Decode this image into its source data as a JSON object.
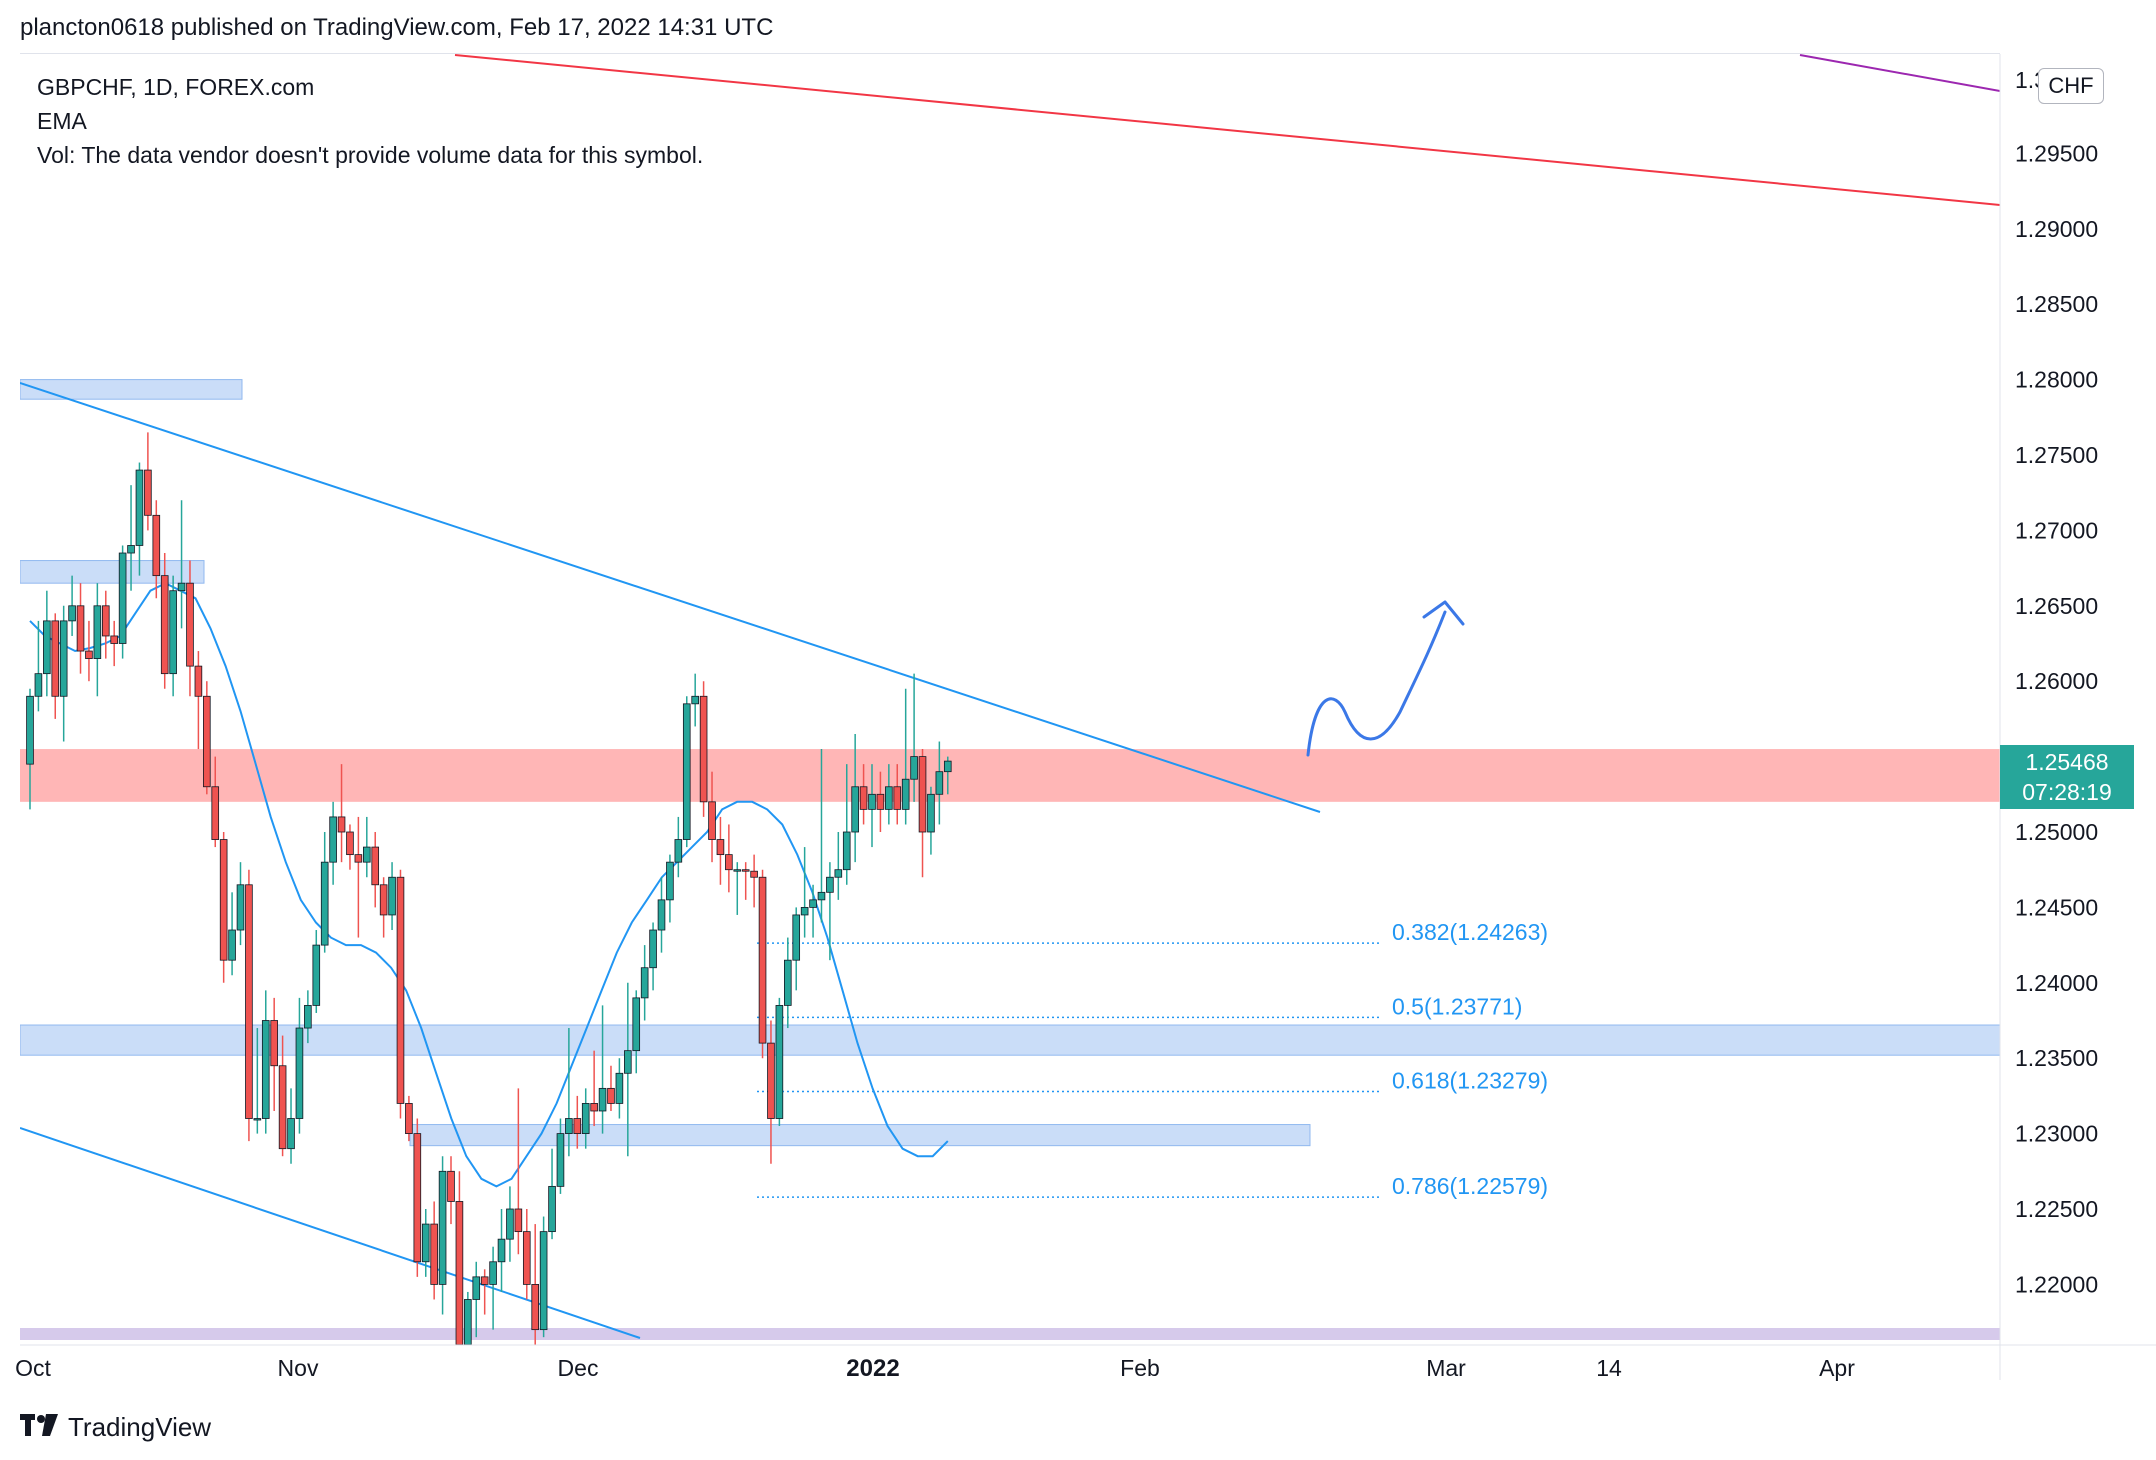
{
  "header": {
    "publish_line": "plancton0618 published on TradingView.com, Feb 17, 2022 14:31 UTC"
  },
  "legend": {
    "symbol_line": "GBPCHF, 1D, FOREX.com",
    "indicator": "EMA",
    "volume_note": "Vol: The data vendor doesn't provide volume data for this symbol."
  },
  "price_axis": {
    "currency": "CHF",
    "tick_labels": [
      "1.29500",
      "1.29000",
      "1.28500",
      "1.28000",
      "1.27500",
      "1.27000",
      "1.26500",
      "1.26000",
      "1.25000",
      "1.24500",
      "1.24000",
      "1.23500",
      "1.23000",
      "1.22500",
      "1.22000"
    ],
    "tick_values": [
      1.295,
      1.29,
      1.285,
      1.28,
      1.275,
      1.27,
      1.265,
      1.26,
      1.25,
      1.245,
      1.24,
      1.235,
      1.23,
      1.225,
      1.22
    ]
  },
  "last_price": {
    "price": "1.25468",
    "countdown": "07:28:19"
  },
  "time_axis": {
    "labels": [
      "Oct",
      "Nov",
      "Dec",
      "2022",
      "Feb",
      "Mar",
      "14",
      "Apr"
    ],
    "bold_label": "2022"
  },
  "fib_levels": [
    {
      "label": "0.382(1.24263)",
      "value": 1.24263
    },
    {
      "label": "0.5(1.23771)",
      "value": 1.23771
    },
    {
      "label": "0.618(1.23279)",
      "value": 1.23279
    },
    {
      "label": "0.786(1.22579)",
      "value": 1.22579
    }
  ],
  "colors": {
    "up": "#26a69a",
    "down": "#ef5350",
    "ema": "#2196f3",
    "trendline": "#2196f3",
    "red_line": "#f23645",
    "purple_line": "#9c27b0",
    "resistance_zone": "#ff9e9e",
    "support_zone": "#b3cff5",
    "projection": "#3b78e7"
  },
  "footer": {
    "brand": "TradingView",
    "logo_icon": "tradingview-logo-icon"
  },
  "chart_data": {
    "type": "candlestick",
    "symbol": "GBPCHF",
    "interval": "1D",
    "ylim": [
      1.216,
      1.3
    ],
    "candles": [
      [
        1.2545,
        1.2595,
        1.2515,
        1.259
      ],
      [
        1.259,
        1.264,
        1.258,
        1.2605
      ],
      [
        1.2605,
        1.266,
        1.259,
        1.264
      ],
      [
        1.264,
        1.2645,
        1.2575,
        1.259
      ],
      [
        1.259,
        1.265,
        1.256,
        1.264
      ],
      [
        1.264,
        1.267,
        1.263,
        1.265
      ],
      [
        1.265,
        1.2665,
        1.2605,
        1.262
      ],
      [
        1.262,
        1.264,
        1.26,
        1.2615
      ],
      [
        1.2615,
        1.2665,
        1.259,
        1.265
      ],
      [
        1.265,
        1.266,
        1.2615,
        1.263
      ],
      [
        1.263,
        1.264,
        1.261,
        1.2625
      ],
      [
        1.2625,
        1.269,
        1.2615,
        1.2685
      ],
      [
        1.2685,
        1.273,
        1.266,
        1.269
      ],
      [
        1.269,
        1.2745,
        1.267,
        1.274
      ],
      [
        1.274,
        1.2765,
        1.27,
        1.271
      ],
      [
        1.271,
        1.272,
        1.2655,
        1.267
      ],
      [
        1.267,
        1.2685,
        1.2595,
        1.2605
      ],
      [
        1.2605,
        1.267,
        1.259,
        1.266
      ],
      [
        1.266,
        1.272,
        1.2635,
        1.2665
      ],
      [
        1.2665,
        1.268,
        1.259,
        1.261
      ],
      [
        1.261,
        1.262,
        1.2555,
        1.259
      ],
      [
        1.259,
        1.26,
        1.2525,
        1.253
      ],
      [
        1.253,
        1.255,
        1.249,
        1.2495
      ],
      [
        1.2495,
        1.25,
        1.24,
        1.2415
      ],
      [
        1.2415,
        1.246,
        1.2405,
        1.2435
      ],
      [
        1.2435,
        1.248,
        1.2425,
        1.2465
      ],
      [
        1.2465,
        1.2475,
        1.2295,
        1.231
      ],
      [
        1.231,
        1.237,
        1.23,
        1.231
      ],
      [
        1.231,
        1.2395,
        1.23,
        1.2375
      ],
      [
        1.2375,
        1.239,
        1.2315,
        1.2345
      ],
      [
        1.2345,
        1.2365,
        1.2285,
        1.229
      ],
      [
        1.229,
        1.233,
        1.228,
        1.231
      ],
      [
        1.231,
        1.239,
        1.23,
        1.237
      ],
      [
        1.237,
        1.2395,
        1.236,
        1.2385
      ],
      [
        1.2385,
        1.2435,
        1.238,
        1.2425
      ],
      [
        1.2425,
        1.25,
        1.242,
        1.248
      ],
      [
        1.248,
        1.252,
        1.2465,
        1.251
      ],
      [
        1.251,
        1.2545,
        1.248,
        1.25
      ],
      [
        1.25,
        1.2505,
        1.2475,
        1.2485
      ],
      [
        1.2485,
        1.251,
        1.243,
        1.248
      ],
      [
        1.248,
        1.251,
        1.247,
        1.249
      ],
      [
        1.249,
        1.25,
        1.245,
        1.2465
      ],
      [
        1.2465,
        1.247,
        1.243,
        1.2445
      ],
      [
        1.2445,
        1.248,
        1.2435,
        1.247
      ],
      [
        1.247,
        1.2475,
        1.231,
        1.232
      ],
      [
        1.232,
        1.2325,
        1.2295,
        1.23
      ],
      [
        1.23,
        1.231,
        1.2205,
        1.2215
      ],
      [
        1.2215,
        1.225,
        1.2205,
        1.224
      ],
      [
        1.224,
        1.2255,
        1.219,
        1.22
      ],
      [
        1.22,
        1.2285,
        1.218,
        1.2275
      ],
      [
        1.2275,
        1.2285,
        1.224,
        1.2255
      ],
      [
        1.2255,
        1.2275,
        1.215,
        1.216
      ],
      [
        1.216,
        1.2195,
        1.215,
        1.219
      ],
      [
        1.219,
        1.2215,
        1.2165,
        1.2205
      ],
      [
        1.2205,
        1.221,
        1.218,
        1.22
      ],
      [
        1.22,
        1.2225,
        1.217,
        1.2215
      ],
      [
        1.2215,
        1.225,
        1.2195,
        1.223
      ],
      [
        1.223,
        1.2265,
        1.2215,
        1.225
      ],
      [
        1.225,
        1.233,
        1.222,
        1.2235
      ],
      [
        1.2235,
        1.225,
        1.219,
        1.22
      ],
      [
        1.22,
        1.224,
        1.216,
        1.217
      ],
      [
        1.217,
        1.2245,
        1.2165,
        1.2235
      ],
      [
        1.2235,
        1.229,
        1.223,
        1.2265
      ],
      [
        1.2265,
        1.231,
        1.226,
        1.23
      ],
      [
        1.23,
        1.237,
        1.2285,
        1.231
      ],
      [
        1.231,
        1.2325,
        1.229,
        1.23
      ],
      [
        1.23,
        1.233,
        1.229,
        1.232
      ],
      [
        1.232,
        1.2355,
        1.2305,
        1.2315
      ],
      [
        1.2315,
        1.2385,
        1.23,
        1.233
      ],
      [
        1.233,
        1.2345,
        1.2315,
        1.232
      ],
      [
        1.232,
        1.235,
        1.231,
        1.234
      ],
      [
        1.234,
        1.24,
        1.2285,
        1.2355
      ],
      [
        1.2355,
        1.2395,
        1.234,
        1.239
      ],
      [
        1.239,
        1.2425,
        1.2375,
        1.241
      ],
      [
        1.241,
        1.244,
        1.2395,
        1.2435
      ],
      [
        1.2435,
        1.247,
        1.242,
        1.2455
      ],
      [
        1.2455,
        1.2485,
        1.244,
        1.248
      ],
      [
        1.248,
        1.251,
        1.247,
        1.2495
      ],
      [
        1.2495,
        1.259,
        1.249,
        1.2585
      ],
      [
        1.2585,
        1.2605,
        1.257,
        1.259
      ],
      [
        1.259,
        1.26,
        1.251,
        1.252
      ],
      [
        1.252,
        1.254,
        1.248,
        1.2495
      ],
      [
        1.2495,
        1.251,
        1.2465,
        1.2485
      ],
      [
        1.2485,
        1.2505,
        1.246,
        1.2475
      ],
      [
        1.2475,
        1.248,
        1.2445,
        1.2475
      ],
      [
        1.2475,
        1.248,
        1.2455,
        1.2474
      ],
      [
        1.2474,
        1.2485,
        1.245,
        1.247
      ],
      [
        1.247,
        1.2475,
        1.235,
        1.236
      ],
      [
        1.236,
        1.2375,
        1.228,
        1.231
      ],
      [
        1.231,
        1.239,
        1.2305,
        1.2385
      ],
      [
        1.2385,
        1.243,
        1.237,
        1.2415
      ],
      [
        1.2415,
        1.245,
        1.2395,
        1.2445
      ],
      [
        1.2445,
        1.249,
        1.243,
        1.245
      ],
      [
        1.245,
        1.2465,
        1.243,
        1.2455
      ],
      [
        1.2455,
        1.2555,
        1.244,
        1.246
      ],
      [
        1.246,
        1.248,
        1.2415,
        1.247
      ],
      [
        1.247,
        1.25,
        1.2455,
        1.2475
      ],
      [
        1.2475,
        1.2545,
        1.2465,
        1.25
      ],
      [
        1.25,
        1.2565,
        1.248,
        1.253
      ],
      [
        1.253,
        1.2545,
        1.2505,
        1.2515
      ],
      [
        1.2515,
        1.2545,
        1.249,
        1.2525
      ],
      [
        1.2525,
        1.254,
        1.25,
        1.2515
      ],
      [
        1.2515,
        1.2545,
        1.2505,
        1.253
      ],
      [
        1.253,
        1.2545,
        1.2505,
        1.2515
      ],
      [
        1.2515,
        1.2595,
        1.2505,
        1.2535
      ],
      [
        1.2535,
        1.2605,
        1.252,
        1.255
      ],
      [
        1.255,
        1.2555,
        1.247,
        1.25
      ],
      [
        1.25,
        1.253,
        1.2485,
        1.2525
      ],
      [
        1.2525,
        1.256,
        1.2505,
        1.254
      ],
      [
        1.254,
        1.255,
        1.2525,
        1.2547
      ]
    ],
    "ema": [
      1.264,
      1.263,
      1.2625,
      1.262,
      1.2622,
      1.2625,
      1.263,
      1.2645,
      1.266,
      1.2665,
      1.266,
      1.2655,
      1.2635,
      1.261,
      1.258,
      1.2545,
      1.251,
      1.248,
      1.2455,
      1.244,
      1.243,
      1.2425,
      1.2425,
      1.242,
      1.241,
      1.2395,
      1.237,
      1.234,
      1.231,
      1.2285,
      1.227,
      1.2265,
      1.227,
      1.2285,
      1.23,
      1.232,
      1.2345,
      1.237,
      1.2395,
      1.242,
      1.244,
      1.2455,
      1.247,
      1.248,
      1.249,
      1.25,
      1.2515,
      1.252,
      1.252,
      1.2515,
      1.2505,
      1.2485,
      1.246,
      1.243,
      1.2395,
      1.236,
      1.233,
      1.2305,
      1.229,
      1.2285,
      1.2285,
      1.2295
    ],
    "ema_start_index": 0
  }
}
